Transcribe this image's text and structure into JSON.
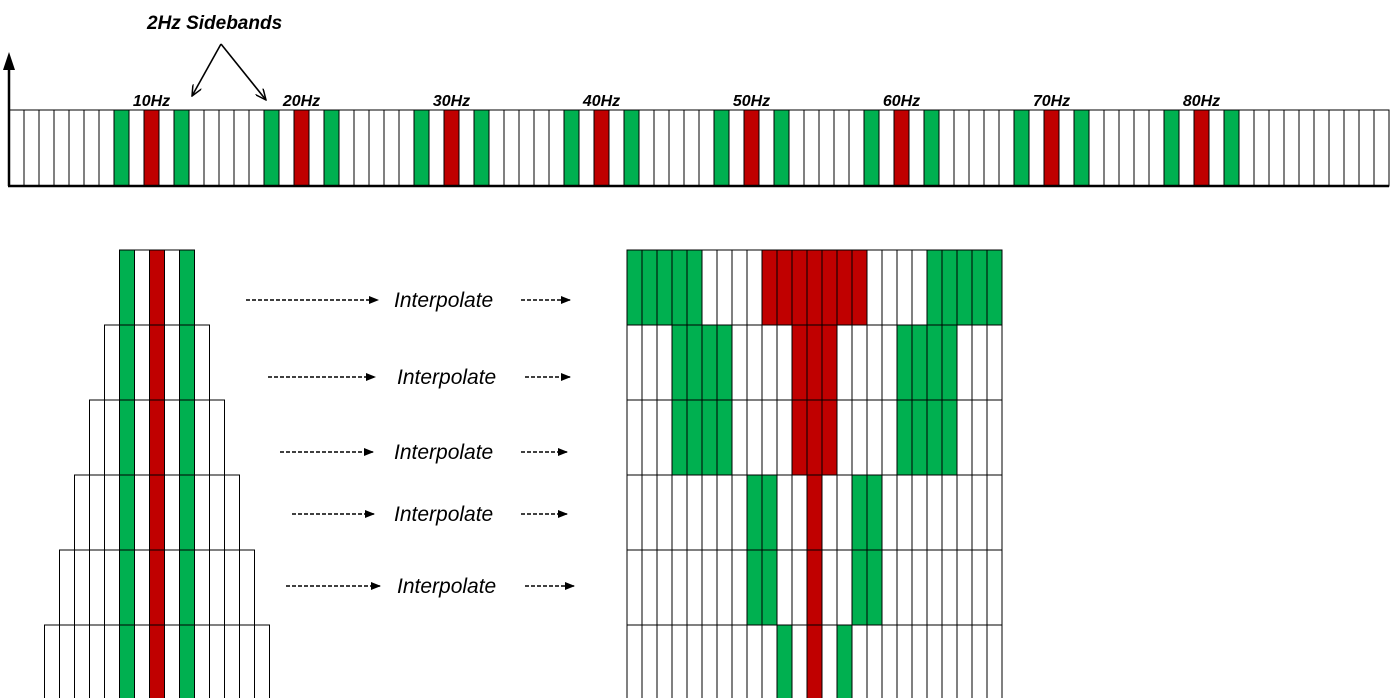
{
  "title": "2Hz Sidebands",
  "colors": {
    "carrier": "#c00000",
    "sideband": "#00b050",
    "empty": "#ffffff",
    "stroke": "#000000"
  },
  "spectrum": {
    "bins": 92,
    "bins_per_label": 10,
    "first_label_bin": 9,
    "sideband_offset_bins": 2,
    "frequency_labels": [
      "10Hz",
      "20Hz",
      "30Hz",
      "40Hz",
      "50Hz",
      "60Hz",
      "70Hz",
      "80Hz"
    ]
  },
  "pyramid": {
    "rows": [
      {
        "bins": 5
      },
      {
        "bins": 7
      },
      {
        "bins": 9
      },
      {
        "bins": 11
      },
      {
        "bins": 13
      },
      {
        "bins": 15
      }
    ]
  },
  "interpolate_label": "Interpolate",
  "interpolate_steps": [
    "Interpolate",
    "Interpolate",
    "Interpolate",
    "Interpolate",
    "Interpolate"
  ],
  "interpolated_grid": {
    "columns": 25,
    "rows": [
      {
        "green": [
          0,
          1,
          2,
          3,
          4,
          20,
          21,
          22,
          23,
          24
        ],
        "red": [
          9,
          10,
          11,
          12,
          13,
          14,
          15
        ]
      },
      {
        "green": [
          3,
          4,
          5,
          6,
          18,
          19,
          20,
          21
        ],
        "red": [
          11,
          12,
          13
        ]
      },
      {
        "green": [
          3,
          4,
          5,
          6,
          18,
          19,
          20,
          21
        ],
        "red": [
          11,
          12,
          13
        ]
      },
      {
        "green": [
          8,
          9,
          15,
          16
        ],
        "red": [
          12
        ]
      },
      {
        "green": [
          8,
          9,
          15,
          16
        ],
        "red": [
          12
        ]
      },
      {
        "green": [
          10,
          14
        ],
        "red": [
          12
        ]
      }
    ]
  }
}
